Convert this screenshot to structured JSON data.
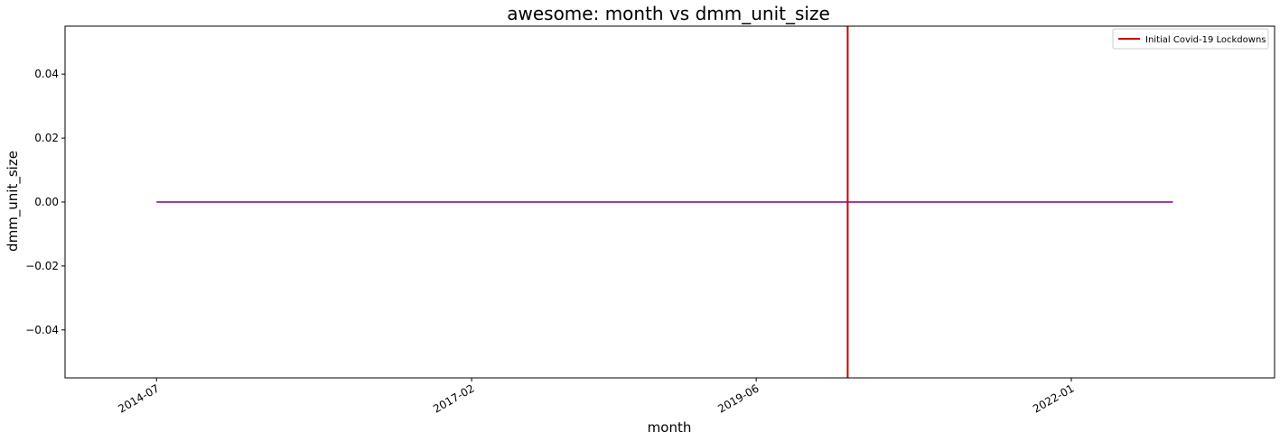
{
  "chart_data": {
    "type": "line",
    "title": "awesome: month vs dmm_unit_size",
    "xlabel": "month",
    "ylabel": "dmm_unit_size",
    "x_axis_type": "date",
    "xlim": [
      "2013-10-01",
      "2023-09-01"
    ],
    "ylim": [
      -0.055,
      0.055
    ],
    "x_ticks": [
      "2014-07",
      "2017-02",
      "2019-06",
      "2022-01"
    ],
    "y_ticks": [
      0.04,
      0.02,
      0.0,
      -0.02,
      -0.04
    ],
    "y_tick_labels": [
      "0.04",
      "0.02",
      "0.00",
      "−0.02",
      "−0.04"
    ],
    "grid": false,
    "series": [
      {
        "color": "#800080",
        "x": [
          "2014-07",
          "2022-11"
        ],
        "y": [
          0.0,
          0.0
        ]
      }
    ],
    "vlines": [
      {
        "name": "Initial Covid-19 Lockdowns",
        "x": "2020-03",
        "color": "#cc0000"
      }
    ],
    "legend": {
      "placement": "top-right",
      "entries": [
        "Initial Covid-19 Lockdowns"
      ]
    }
  }
}
